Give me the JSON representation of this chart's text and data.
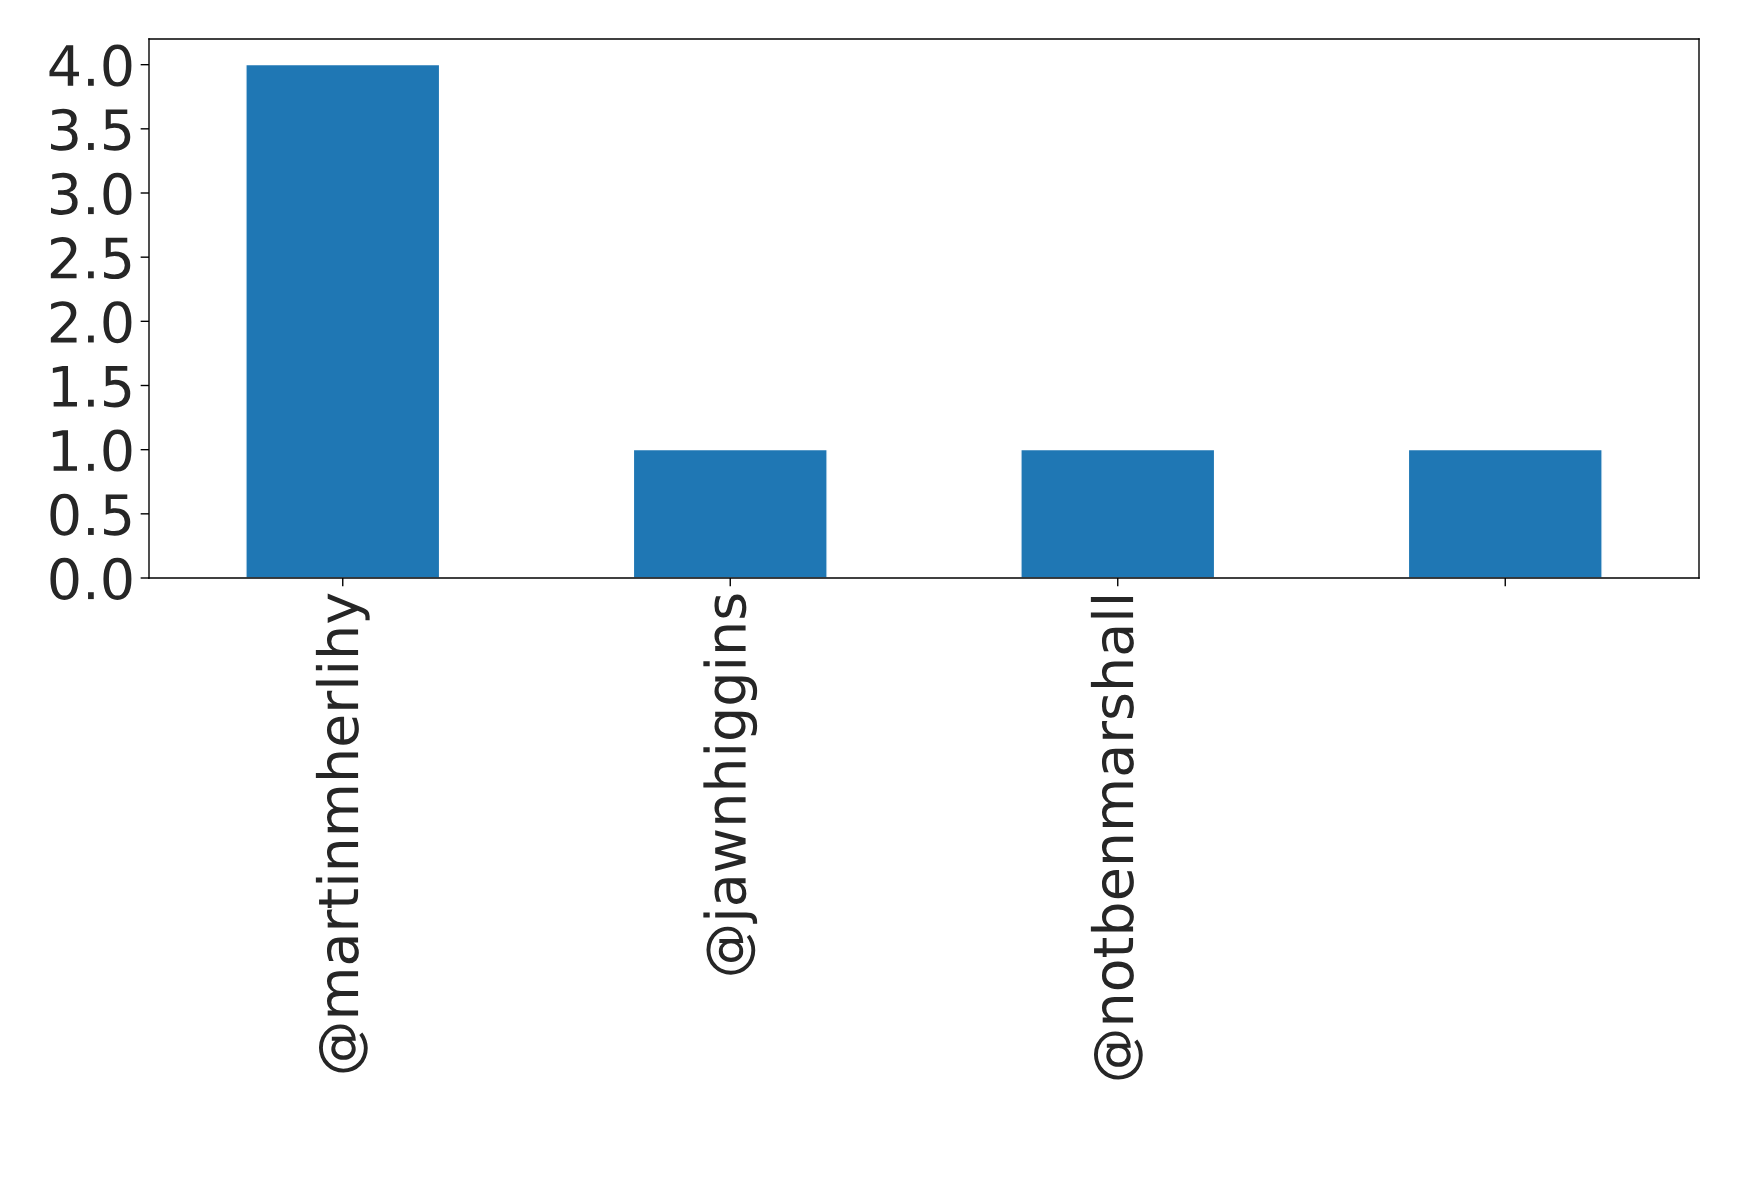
{
  "chart_data": {
    "type": "bar",
    "categories": [
      "@martinmherlihy",
      "@jawnhiggins",
      "@notbenmarshall",
      null
    ],
    "values": [
      4,
      1,
      1,
      1
    ],
    "color": "#1f77b4",
    "ylim": [
      0,
      4.2
    ],
    "yticks": [
      {
        "value": 0,
        "label": "0.0"
      },
      {
        "value": 0.5,
        "label": "0.5"
      },
      {
        "value": 1,
        "label": "1.0"
      },
      {
        "value": 1.5,
        "label": "1.5"
      },
      {
        "value": 2,
        "label": "2.0"
      },
      {
        "value": 2.5,
        "label": "2.5"
      },
      {
        "value": 3,
        "label": "3.0"
      },
      {
        "value": 3.5,
        "label": "3.5"
      },
      {
        "value": 4,
        "label": "4.0"
      }
    ],
    "grid": false,
    "legend": false
  }
}
